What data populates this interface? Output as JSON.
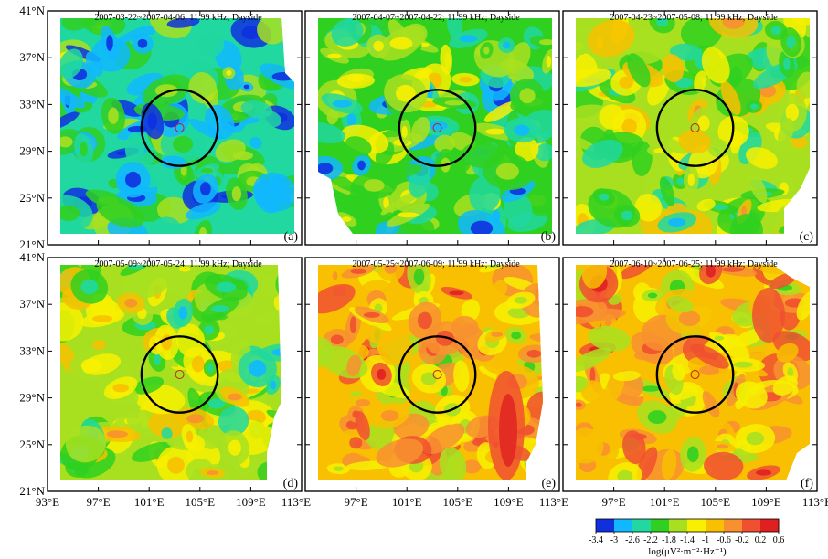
{
  "figure": {
    "lon_ticks": [
      "93°E",
      "97°E",
      "101°E",
      "105°E",
      "109°E",
      "113°E"
    ],
    "lat_ticks": [
      "41°N",
      "37°N",
      "33°N",
      "29°N",
      "25°N",
      "21°N"
    ],
    "lon_range": [
      93,
      113
    ],
    "lat_range": [
      21,
      41
    ],
    "epicenter": {
      "lon": 103.4,
      "lat": 31.0,
      "circle_radius_deg": 3.0
    },
    "panels": [
      {
        "letter": "(a)",
        "title": "2007-03-22~2007-04-06; 11.99 kHz; Dayside",
        "level": 0.22,
        "seed": 11
      },
      {
        "letter": "(b)",
        "title": "2007-04-07~2007-04-22; 11.99 kHz; Dayside",
        "level": 0.3,
        "seed": 23
      },
      {
        "letter": "(c)",
        "title": "2007-04-23~2007-05-08; 11.99 kHz; Dayside",
        "level": 0.42,
        "seed": 37
      },
      {
        "letter": "(d)",
        "title": "2007-05-09~2007-05-24; 11.99 kHz; Dayside",
        "level": 0.4,
        "seed": 41
      },
      {
        "letter": "(e)",
        "title": "2007-05-25~2007-06-09; 11.99 kHz; Dayside",
        "level": 0.68,
        "seed": 53
      },
      {
        "letter": "(f)",
        "title": "2007-06-10~2007-06-25; 11.99 kHz; Dayside",
        "level": 0.64,
        "seed": 67
      }
    ],
    "colorbar": {
      "ticks": [
        "-3.4",
        "-3",
        "-2.6",
        "-2.2",
        "-1.8",
        "-1.4",
        "-1",
        "-0.6",
        "-0.2",
        "0.2",
        "0.6"
      ],
      "range": [
        -3.4,
        0.6
      ],
      "title": "log(μV²·m⁻²·Hz⁻¹)",
      "colors": [
        "#1030e0",
        "#10b8ff",
        "#20d8a0",
        "#30d020",
        "#a8e020",
        "#f8f000",
        "#f8c000",
        "#f89030",
        "#f05030",
        "#e02020"
      ]
    }
  }
}
